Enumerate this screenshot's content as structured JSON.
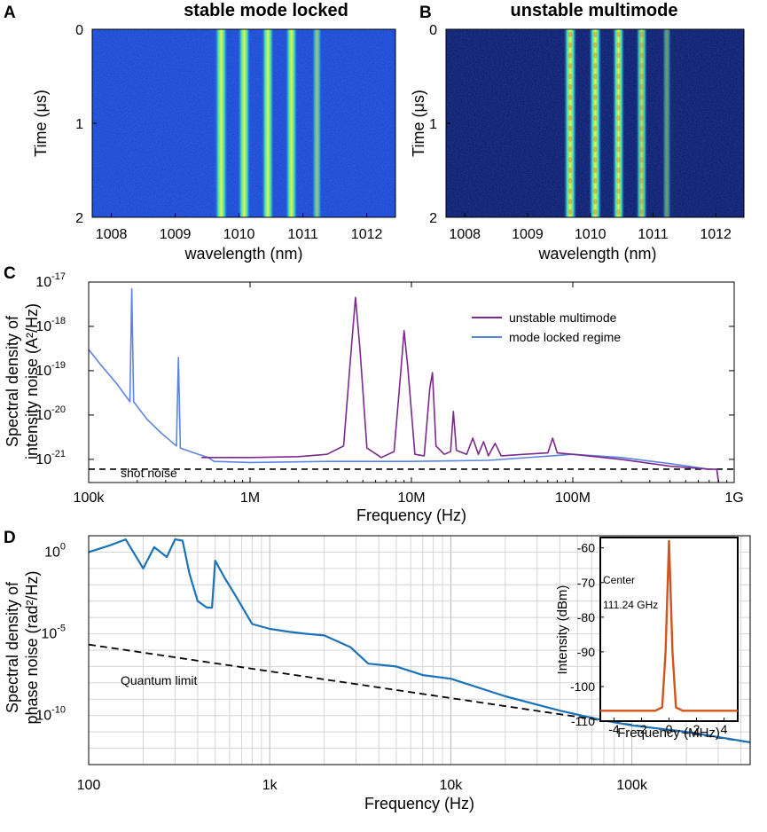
{
  "chart_data": [
    {
      "panel": "A",
      "type": "heatmap",
      "title": "stable mode locked",
      "xlabel": "wavelength (nm)",
      "ylabel": "Time (μs)",
      "xlim": [
        1007.7,
        1012.45
      ],
      "ylim": [
        0,
        2
      ],
      "xticks": [
        "1008",
        "1009",
        "1010",
        "1011",
        "1012"
      ],
      "yticks": [
        "0",
        "1",
        "2"
      ],
      "lines": [
        {
          "wavelength": 1009.72,
          "intensity": 1.0
        },
        {
          "wavelength": 1010.08,
          "intensity": 0.95
        },
        {
          "wavelength": 1010.45,
          "intensity": 0.9
        },
        {
          "wavelength": 1010.82,
          "intensity": 0.85
        },
        {
          "wavelength": 1011.22,
          "intensity": 0.45
        }
      ]
    },
    {
      "panel": "B",
      "type": "heatmap",
      "title": "unstable multimode",
      "xlabel": "wavelength (nm)",
      "ylabel": "Time (μs)",
      "xlim": [
        1007.7,
        1012.45
      ],
      "ylim": [
        0,
        2
      ],
      "xticks": [
        "1008",
        "1009",
        "1010",
        "1011",
        "1012"
      ],
      "yticks": [
        "0",
        "1",
        "2"
      ],
      "lines": [
        {
          "wavelength": 1009.68,
          "intensity": 1.0
        },
        {
          "wavelength": 1010.08,
          "intensity": 0.95
        },
        {
          "wavelength": 1010.45,
          "intensity": 0.85
        },
        {
          "wavelength": 1010.82,
          "intensity": 0.7
        },
        {
          "wavelength": 1011.22,
          "intensity": 0.25
        }
      ]
    },
    {
      "panel": "C",
      "type": "line",
      "xscale": "log",
      "yscale": "log",
      "xlabel": "Frequency (Hz)",
      "ylabel_line1": "Spectral density of",
      "ylabel_line2": "intensity noise (A²/Hz)",
      "xlim": [
        100000,
        1000000000
      ],
      "ylim": [
        3e-22,
        1e-17
      ],
      "xticks": [
        {
          "value": 100000,
          "label": "100k"
        },
        {
          "value": 1000000,
          "label": "1M"
        },
        {
          "value": 10000000,
          "label": "10M"
        },
        {
          "value": 100000000,
          "label": "100M"
        },
        {
          "value": 1000000000,
          "label": "1G"
        }
      ],
      "yticks": [
        {
          "exp": -17,
          "label": "10",
          "sup": "-17"
        },
        {
          "exp": -18,
          "label": "10",
          "sup": "-18"
        },
        {
          "exp": -19,
          "label": "10",
          "sup": "-19"
        },
        {
          "exp": -20,
          "label": "10",
          "sup": "-20"
        },
        {
          "exp": -21,
          "label": "10",
          "sup": "-21"
        }
      ],
      "shot_noise_level": 6e-22,
      "shot_noise_label": "shot noise",
      "legend_position": "top-right",
      "series": [
        {
          "name": "unstable multimode",
          "color": "#7b2a8c",
          "x": [
            500000,
            700000,
            1000000,
            2000000,
            3000000,
            3800000,
            4200000,
            4500000,
            4800000,
            5300000,
            6500000,
            7800000,
            8600000,
            9000000,
            9500000,
            10500000,
            12000000,
            13000000,
            13500000,
            14200000,
            16000000,
            17500000,
            18200000,
            19000000,
            22000000,
            24000000,
            26000000,
            28000000,
            30000000,
            33000000,
            36000000,
            50000000,
            70000000,
            75000000,
            80000000,
            100000000,
            200000000,
            400000000,
            700000000,
            780000000,
            800000000
          ],
          "y": [
            1.1e-21,
            1.1e-21,
            1.1e-21,
            1.15e-21,
            1.3e-21,
            2e-21,
            2e-19,
            4.5e-18,
            3e-19,
            1.8e-21,
            1.1e-21,
            1.5e-21,
            1e-19,
            8e-19,
            1.2e-19,
            1.3e-21,
            1.2e-21,
            4e-20,
            9e-20,
            2e-21,
            1.3e-21,
            1.5e-21,
            1.2e-20,
            1.6e-21,
            1.3e-21,
            3e-21,
            1.3e-21,
            2.5e-21,
            1.2e-21,
            2.3e-21,
            1.2e-21,
            1.3e-21,
            1.4e-21,
            3e-21,
            1.4e-21,
            1.3e-21,
            1e-21,
            7e-22,
            6e-22,
            6e-22,
            3e-22
          ]
        },
        {
          "name": "mode locked regime",
          "color": "#5b84e0",
          "x": [
            100000,
            120000,
            150000,
            180000,
            185000,
            190000,
            230000,
            280000,
            350000,
            360000,
            370000,
            450000,
            550000,
            600000,
            1000000,
            3000000,
            10000000,
            30000000,
            100000000,
            200000000,
            400000000,
            700000000,
            780000000,
            800000000
          ],
          "y": [
            3e-19,
            1.3e-19,
            5e-20,
            2e-20,
            7e-18,
            2e-20,
            8e-21,
            4e-21,
            2e-21,
            2e-19,
            1.8e-21,
            1.4e-21,
            1.1e-21,
            9e-22,
            8.5e-22,
            9e-22,
            9e-22,
            9.5e-22,
            1.3e-21,
            1.1e-21,
            8e-22,
            6e-22,
            6e-22,
            3e-22
          ]
        }
      ]
    },
    {
      "panel": "D",
      "type": "line",
      "xscale": "log",
      "yscale": "log",
      "xlabel": "Frequency (Hz)",
      "ylabel_line1": "Spectral density of",
      "ylabel_line2": "phase noise (rad²/Hz)",
      "xlim": [
        100,
        450000
      ],
      "ylim": [
        1e-13,
        10
      ],
      "xticks": [
        {
          "value": 100,
          "label": "100"
        },
        {
          "value": 1000,
          "label": "1k"
        },
        {
          "value": 10000,
          "label": "10k"
        },
        {
          "value": 100000,
          "label": "100k"
        }
      ],
      "yticks": [
        {
          "exp": 0,
          "label": "10",
          "sup": "0"
        },
        {
          "exp": -5,
          "label": "10",
          "sup": "-5"
        },
        {
          "exp": -10,
          "label": "10",
          "sup": "-10"
        }
      ],
      "grid": true,
      "quantum_limit_label": "Quantum limit",
      "quantum_limit": {
        "x": [
          100,
          450000
        ],
        "y": [
          2.2e-06,
          2.3e-12
        ]
      },
      "series": [
        {
          "name": "phase noise",
          "color": "#1a73b8",
          "x": [
            100,
            130,
            160,
            200,
            230,
            270,
            300,
            330,
            360,
            400,
            450,
            480,
            500,
            560,
            650,
            800,
            1000,
            1300,
            1600,
            2000,
            2800,
            3500,
            5000,
            7000,
            10000,
            20000,
            40000,
            70000,
            100000,
            200000,
            450000
          ],
          "y": [
            1.0,
            2.5,
            6.0,
            0.1,
            2.0,
            0.5,
            6.0,
            5.0,
            0.05,
            0.001,
            0.0004,
            0.0004,
            0.3,
            0.03,
            0.002,
            4e-05,
            2e-05,
            1.3e-05,
            1e-05,
            8e-06,
            1.5e-06,
            1.5e-07,
            1e-07,
            3e-08,
            1.8e-08,
            1.5e-09,
            2e-10,
            5e-11,
            2.5e-11,
            1e-11,
            2.3e-12
          ]
        }
      ],
      "inset": {
        "type": "line",
        "xlabel": "Frequency (MHz)",
        "ylabel": "Intensity (dBm)",
        "xlim": [
          -5,
          5
        ],
        "ylim": [
          -110,
          -57
        ],
        "xticks": [
          "-4",
          "-2",
          "0",
          "2",
          "4"
        ],
        "yticks": [
          "-60",
          "-70",
          "-80",
          "-90",
          "-100",
          "-110"
        ],
        "annotation_line1": "Center",
        "annotation_line2": "111.24 GHz",
        "color": "#d2531b",
        "x": [
          -5,
          -1,
          -0.5,
          -0.25,
          0,
          0.25,
          0.5,
          1,
          5
        ],
        "y": [
          -107,
          -107,
          -106,
          -90,
          -58,
          -90,
          -106,
          -107,
          -107
        ]
      }
    }
  ]
}
